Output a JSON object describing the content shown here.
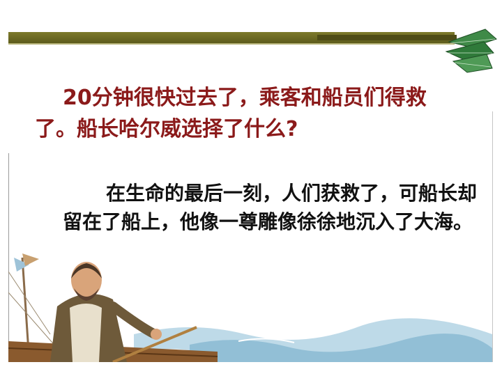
{
  "slide": {
    "question": "20分钟很快过去了，乘客和船员们得救了。船长哈尔威选择了什么?",
    "answer": "在生命的最后一刻，人们获救了，可船长却留在了船上，他像一尊雕像徐徐地沉入了大海。"
  },
  "colors": {
    "question_text": "#8b1a1a",
    "answer_text": "#111111",
    "bar": "#6b6922",
    "leaf": "#2f7a3a"
  },
  "icons": [
    "leaf-ornament-icon"
  ]
}
